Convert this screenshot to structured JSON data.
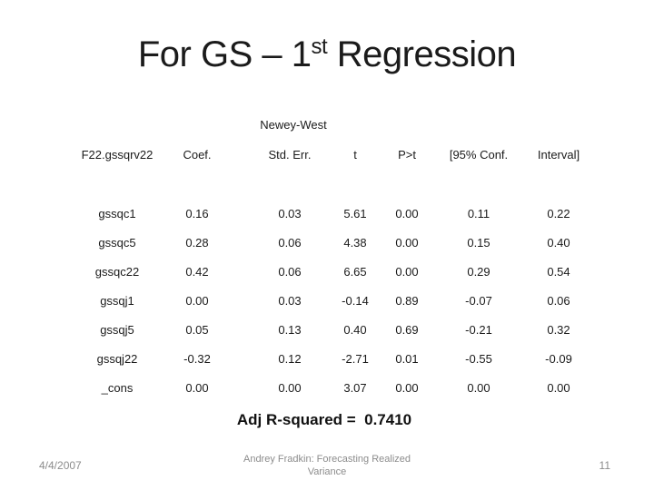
{
  "slide": {
    "title_main": "For GS – 1",
    "title_superscript": "st",
    "title_rest": " Regression"
  },
  "table": {
    "group_header": "Newey-West",
    "columns": [
      "F22.gssqrv22",
      "Coef.",
      "Std. Err.",
      "t",
      "P>t",
      "[95% Conf.",
      "Interval]"
    ],
    "rows": [
      {
        "label": "gssqc1",
        "values": [
          "0.16",
          "0.03",
          "5.61",
          "0.00",
          "0.11",
          "0.22"
        ]
      },
      {
        "label": "gssqc5",
        "values": [
          "0.28",
          "0.06",
          "4.38",
          "0.00",
          "0.15",
          "0.40"
        ]
      },
      {
        "label": "gssqc22",
        "values": [
          "0.42",
          "0.06",
          "6.65",
          "0.00",
          "0.29",
          "0.54"
        ]
      },
      {
        "label": "gssqj1",
        "values": [
          "0.00",
          "0.03",
          "-0.14",
          "0.89",
          "-0.07",
          "0.06"
        ]
      },
      {
        "label": "gssqj5",
        "values": [
          "0.05",
          "0.13",
          "0.40",
          "0.69",
          "-0.21",
          "0.32"
        ]
      },
      {
        "label": "gssqj22",
        "values": [
          "-0.32",
          "0.12",
          "-2.71",
          "0.01",
          "-0.55",
          "-0.09"
        ]
      },
      {
        "label": "_cons",
        "values": [
          "0.00",
          "0.00",
          "3.07",
          "0.00",
          "0.00",
          "0.00"
        ]
      }
    ],
    "summary": "Adj R-squared =  0.7410"
  },
  "footer": {
    "date": "4/4/2007",
    "credit_line1": "Andrey Fradkin: Forecasting Realized",
    "credit_line2": "Variance",
    "page_number": "11"
  },
  "colors": {
    "background": "#ffffff",
    "text": "#1a1a1a",
    "footer_gray": "#8c8c8c"
  }
}
